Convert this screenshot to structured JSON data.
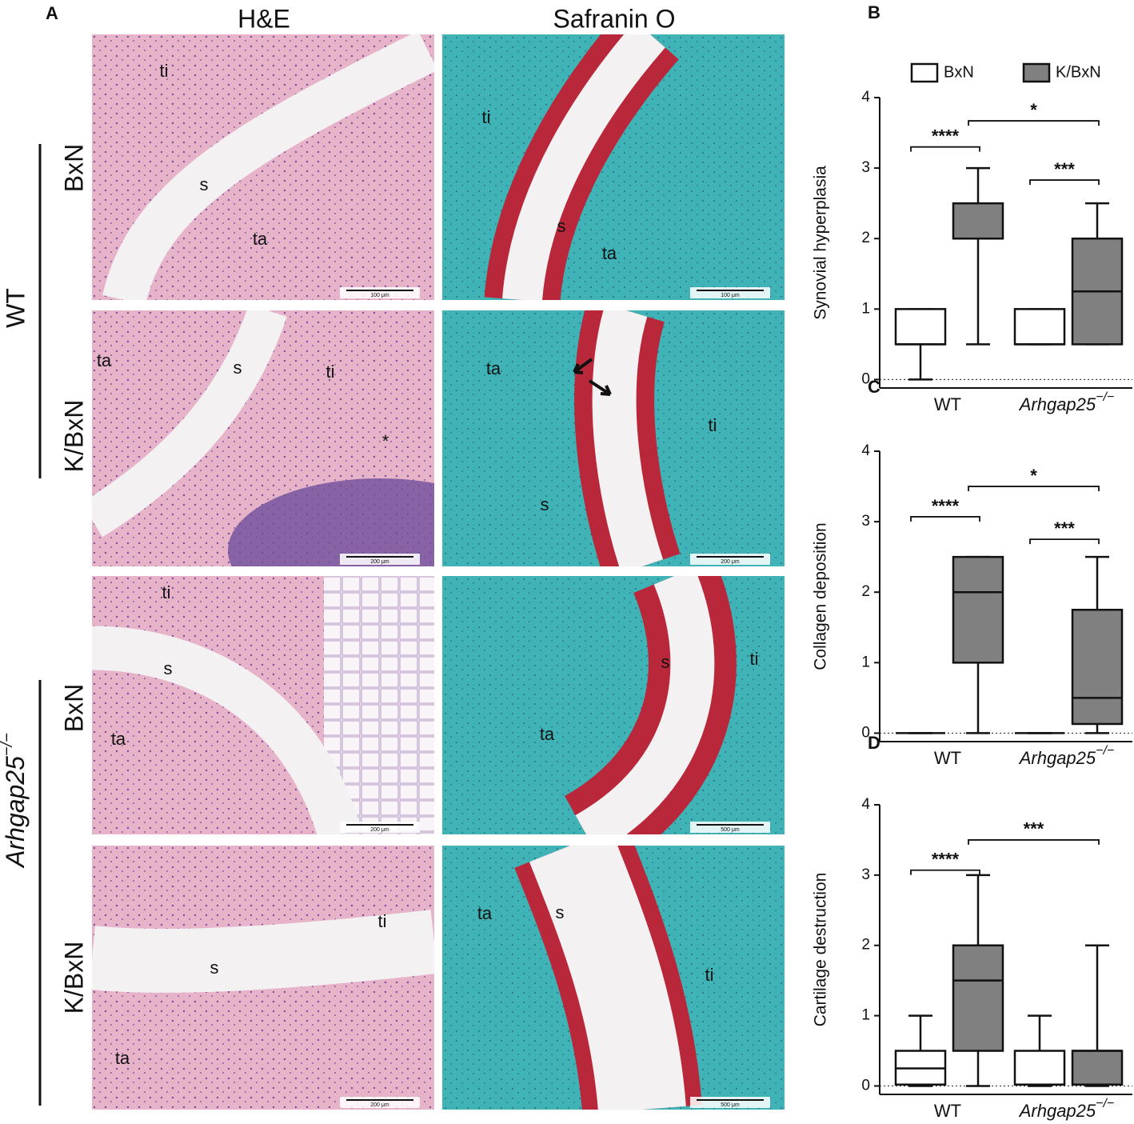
{
  "figure": {
    "panel_label": "A",
    "column_headers": [
      "H&E",
      "Safranin O"
    ],
    "groups": [
      {
        "label": "WT"
      },
      {
        "label": "Arhgap25",
        "sup": "−/−"
      }
    ],
    "row_labels": [
      "BxN",
      "K/BxN",
      "BxN",
      "K/BxN"
    ],
    "micrographs": [
      {
        "labels": [
          "ti",
          "s",
          "ta"
        ],
        "scale": "100 μm"
      },
      {
        "labels": [
          "ti",
          "s",
          "ta"
        ],
        "scale": "100 μm"
      },
      {
        "labels": [
          "ta",
          "s",
          "ti",
          "*"
        ],
        "scale": "200 μm"
      },
      {
        "labels": [
          "ta",
          "s",
          "ti"
        ],
        "scale": "200 μm"
      },
      {
        "labels": [
          "ti",
          "s",
          "ta"
        ],
        "scale": "200 μm"
      },
      {
        "labels": [
          "s",
          "ta",
          "ti"
        ],
        "scale": "500 μm"
      },
      {
        "labels": [
          "ti",
          "s",
          "ta"
        ],
        "scale": "200 μm"
      },
      {
        "labels": [
          "ta",
          "s",
          "ti"
        ],
        "scale": "500 μm"
      }
    ]
  },
  "chart_data": [
    {
      "type": "box",
      "panel_label": "B",
      "y_label": "Synovial hyperplasia",
      "categories": [
        "WT",
        "Arhgap25"
      ],
      "category_superscripts": [
        null,
        "−/−"
      ],
      "ylim": [
        -0.12,
        4
      ],
      "yticks": [
        0,
        1,
        2,
        3,
        4
      ],
      "zero_line": true,
      "legend": true,
      "series": [
        {
          "name": "BxN",
          "color": "#ffffff",
          "min": [
            0,
            0.5
          ],
          "q1": [
            0.5,
            0.5
          ],
          "median": [
            0.5,
            0.5
          ],
          "q3": [
            1,
            1
          ],
          "max": [
            1,
            1
          ]
        },
        {
          "name": "K/BxN",
          "color": "#808080",
          "min": [
            0.5,
            0.5
          ],
          "q1": [
            2,
            0.5
          ],
          "median": [
            2,
            1.25
          ],
          "q3": [
            2.5,
            2
          ],
          "max": [
            3,
            2.5
          ]
        }
      ],
      "significance": [
        "****",
        "*",
        "***"
      ]
    },
    {
      "type": "box",
      "panel_label": "C",
      "y_label": "Collagen deposition",
      "categories": [
        "WT",
        "Arhgap25"
      ],
      "category_superscripts": [
        null,
        "−/−"
      ],
      "ylim": [
        -0.12,
        4
      ],
      "yticks": [
        0,
        1,
        2,
        3,
        4
      ],
      "zero_line": true,
      "legend": false,
      "series": [
        {
          "name": "BxN",
          "color": "#ffffff",
          "min": [
            0,
            0
          ],
          "q1": [
            0,
            0
          ],
          "median": [
            0,
            0
          ],
          "q3": [
            0,
            0
          ],
          "max": [
            0,
            0
          ]
        },
        {
          "name": "K/BxN",
          "color": "#808080",
          "min": [
            0,
            0
          ],
          "q1": [
            1,
            0.13
          ],
          "median": [
            2,
            0.5
          ],
          "q3": [
            2.5,
            1.75
          ],
          "max": [
            2.5,
            2.5
          ]
        }
      ],
      "significance": [
        "****",
        "*",
        "***"
      ]
    },
    {
      "type": "box",
      "panel_label": "D",
      "y_label": "Cartilage destruction",
      "categories": [
        "WT",
        "Arhgap25"
      ],
      "category_superscripts": [
        null,
        "−/−"
      ],
      "ylim": [
        -0.12,
        4
      ],
      "yticks": [
        0,
        1,
        2,
        3,
        4
      ],
      "zero_line": true,
      "legend": false,
      "series": [
        {
          "name": "BxN",
          "color": "#ffffff",
          "min": [
            0,
            0
          ],
          "q1": [
            0.02,
            0.02
          ],
          "median": [
            0.25,
            0.02
          ],
          "q3": [
            0.5,
            0.5
          ],
          "max": [
            1,
            1
          ]
        },
        {
          "name": "K/BxN",
          "color": "#808080",
          "min": [
            0,
            0
          ],
          "q1": [
            0.5,
            0.02
          ],
          "median": [
            1.5,
            0.5
          ],
          "q3": [
            2,
            0.5
          ],
          "max": [
            3,
            2
          ]
        }
      ],
      "significance": [
        "****",
        "***"
      ]
    }
  ]
}
